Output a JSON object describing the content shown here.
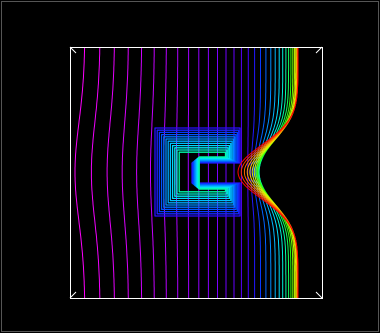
{
  "chart_data": {
    "type": "contour",
    "colors": [
      "#ff00ff",
      "#9900ff",
      "#3300ff",
      "#0044ff",
      "#0099ff",
      "#00e5ff",
      "#00ff99",
      "#33ff00",
      "#ccff00",
      "#ffcc00",
      "#ff6600",
      "#ff0000"
    ]
  }
}
